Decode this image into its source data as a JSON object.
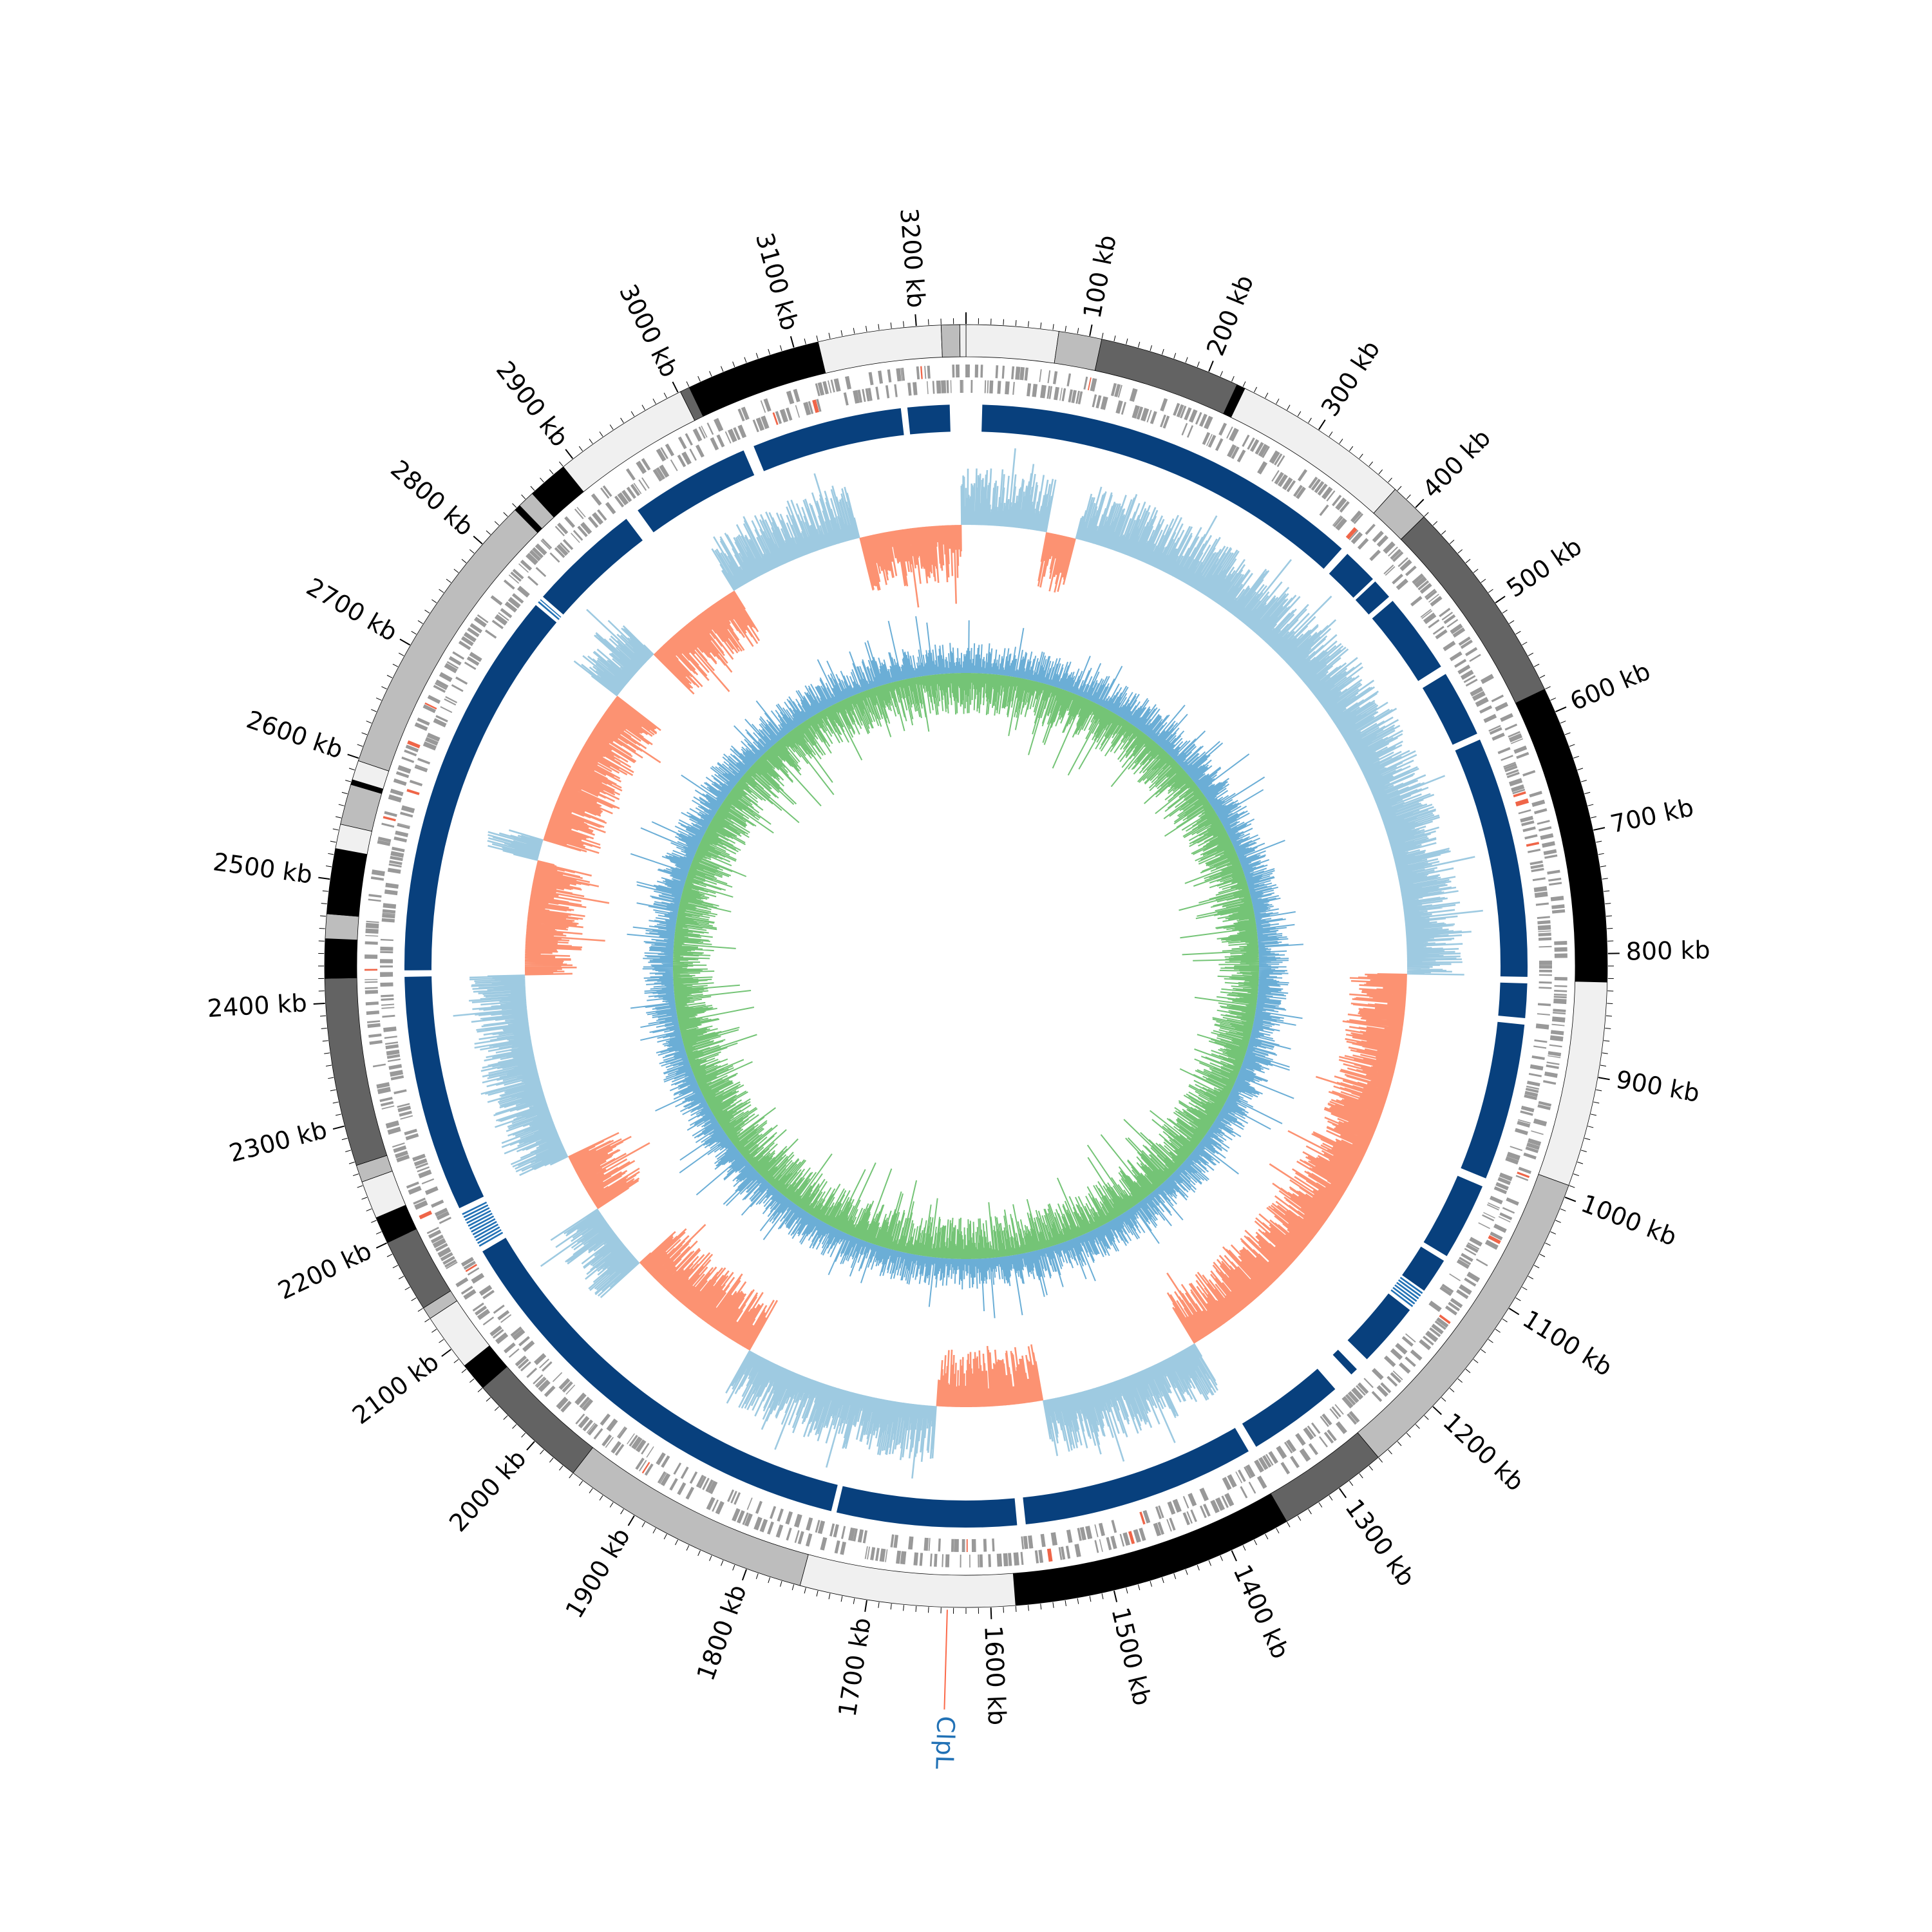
{
  "genome": {
    "length_kb": 3240,
    "start_offset_kb": 0
  },
  "scale": {
    "unit": "kb",
    "major_ticks_kb": [
      100,
      200,
      300,
      400,
      500,
      600,
      700,
      800,
      900,
      1000,
      1100,
      1200,
      1300,
      1400,
      1500,
      1600,
      1700,
      1800,
      1900,
      2000,
      2100,
      2200,
      2300,
      2400,
      2500,
      2600,
      2700,
      2800,
      2900,
      3000,
      3100,
      3200
    ],
    "labels": [
      "100 kb",
      "200 kb",
      "300 kb",
      "400 kb",
      "500 kb",
      "600 kb",
      "700 kb",
      "800 kb",
      "900 kb",
      "1000 kb",
      "1100 kb",
      "1200 kb",
      "1300 kb",
      "1400 kb",
      "1500 kb",
      "1600 kb",
      "1700 kb",
      "1800 kb",
      "1900 kb",
      "2000 kb",
      "2100 kb",
      "2200 kb",
      "2300 kb",
      "2400 kb",
      "2500 kb",
      "2600 kb",
      "2700 kb",
      "2800 kb",
      "2900 kb",
      "3000 kb",
      "3100 kb",
      "3200 kb"
    ]
  },
  "contig_ring": [
    {
      "start": 0,
      "end": 75,
      "shade": "#f0f0f0"
    },
    {
      "start": 75,
      "end": 110,
      "shade": "#bdbdbd"
    },
    {
      "start": 110,
      "end": 225,
      "shade": "#636363"
    },
    {
      "start": 225,
      "end": 232,
      "shade": "#000000"
    },
    {
      "start": 232,
      "end": 378,
      "shade": "#f0f0f0"
    },
    {
      "start": 378,
      "end": 410,
      "shade": "#bdbdbd"
    },
    {
      "start": 410,
      "end": 580,
      "shade": "#636363"
    },
    {
      "start": 580,
      "end": 823,
      "shade": "#000000"
    },
    {
      "start": 823,
      "end": 990,
      "shade": "#f0f0f0"
    },
    {
      "start": 990,
      "end": 1260,
      "shade": "#bdbdbd"
    },
    {
      "start": 1260,
      "end": 1350,
      "shade": "#636363"
    },
    {
      "start": 1350,
      "end": 1580,
      "shade": "#000000"
    },
    {
      "start": 1580,
      "end": 1755,
      "shade": "#f0f0f0"
    },
    {
      "start": 1755,
      "end": 1960,
      "shade": "#bdbdbd"
    },
    {
      "start": 1960,
      "end": 2060,
      "shade": "#636363"
    },
    {
      "start": 2060,
      "end": 2083,
      "shade": "#000000"
    },
    {
      "start": 2083,
      "end": 2130,
      "shade": "#f0f0f0"
    },
    {
      "start": 2130,
      "end": 2140,
      "shade": "#bdbdbd"
    },
    {
      "start": 2140,
      "end": 2200,
      "shade": "#636363"
    },
    {
      "start": 2200,
      "end": 2222,
      "shade": "#000000"
    },
    {
      "start": 2222,
      "end": 2253,
      "shade": "#f0f0f0"
    },
    {
      "start": 2253,
      "end": 2267,
      "shade": "#bdbdbd"
    },
    {
      "start": 2267,
      "end": 2420,
      "shade": "#636363"
    },
    {
      "start": 2420,
      "end": 2452,
      "shade": "#000000"
    },
    {
      "start": 2452,
      "end": 2472,
      "shade": "#bdbdbd"
    },
    {
      "start": 2472,
      "end": 2525,
      "shade": "#000000"
    },
    {
      "start": 2525,
      "end": 2545,
      "shade": "#f0f0f0"
    },
    {
      "start": 2545,
      "end": 2578,
      "shade": "#bdbdbd"
    },
    {
      "start": 2578,
      "end": 2582,
      "shade": "#000000"
    },
    {
      "start": 2582,
      "end": 2598,
      "shade": "#f0f0f0"
    },
    {
      "start": 2598,
      "end": 2838,
      "shade": "#bdbdbd"
    },
    {
      "start": 2838,
      "end": 2843,
      "shade": "#000000"
    },
    {
      "start": 2843,
      "end": 2857,
      "shade": "#bdbdbd"
    },
    {
      "start": 2857,
      "end": 2890,
      "shade": "#000000"
    },
    {
      "start": 2890,
      "end": 3002,
      "shade": "#f0f0f0"
    },
    {
      "start": 3002,
      "end": 3010,
      "shade": "#636363"
    },
    {
      "start": 3010,
      "end": 3120,
      "shade": "#000000"
    },
    {
      "start": 3120,
      "end": 3220,
      "shade": "#f0f0f0"
    },
    {
      "start": 3220,
      "end": 3235,
      "shade": "#bdbdbd"
    },
    {
      "start": 3235,
      "end": 3240,
      "shade": "#f0f0f0"
    }
  ],
  "blue_ring": {
    "color": "#08407d",
    "light_color": "#2171b5",
    "segments": [
      {
        "start": 15,
        "end": 378
      },
      {
        "start": 385,
        "end": 418
      },
      {
        "start": 421,
        "end": 440
      },
      {
        "start": 445,
        "end": 520
      },
      {
        "start": 528,
        "end": 590
      },
      {
        "start": 596,
        "end": 820
      },
      {
        "start": 826,
        "end": 858
      },
      {
        "start": 864,
        "end": 1010
      },
      {
        "start": 1018,
        "end": 1090
      },
      {
        "start": 1095,
        "end": 1128
      },
      {
        "start": 1150,
        "end": 1210
      },
      {
        "start": 1223,
        "end": 1230
      },
      {
        "start": 1250,
        "end": 1340
      },
      {
        "start": 1348,
        "end": 1565
      },
      {
        "start": 1573,
        "end": 1740
      },
      {
        "start": 1745,
        "end": 2155
      },
      {
        "start": 2200,
        "end": 2420
      },
      {
        "start": 2426,
        "end": 2790
      },
      {
        "start": 2800,
        "end": 2905
      },
      {
        "start": 2918,
        "end": 3030
      },
      {
        "start": 3040,
        "end": 3180
      },
      {
        "start": 3186,
        "end": 3225
      }
    ],
    "light_segments": [
      {
        "start": 1130,
        "end": 1148
      },
      {
        "start": 2160,
        "end": 2195
      },
      {
        "start": 2793,
        "end": 2797
      }
    ]
  },
  "skew_track": {
    "positive_color": "#9ecae1",
    "negative_color": "#fc9272",
    "regions": [
      {
        "start": 0,
        "end": 95,
        "sign": 1
      },
      {
        "start": 95,
        "end": 130,
        "sign": -1
      },
      {
        "start": 130,
        "end": 820,
        "sign": 1
      },
      {
        "start": 820,
        "end": 1340,
        "sign": -1
      },
      {
        "start": 1340,
        "end": 1530,
        "sign": 1
      },
      {
        "start": 1530,
        "end": 1655,
        "sign": -1
      },
      {
        "start": 1655,
        "end": 1885,
        "sign": 1
      },
      {
        "start": 1885,
        "end": 2050,
        "sign": -1
      },
      {
        "start": 2050,
        "end": 2130,
        "sign": 1
      },
      {
        "start": 2130,
        "end": 2200,
        "sign": -1
      },
      {
        "start": 2200,
        "end": 2420,
        "sign": 1
      },
      {
        "start": 2420,
        "end": 2555,
        "sign": -1
      },
      {
        "start": 2555,
        "end": 2580,
        "sign": 1
      },
      {
        "start": 2580,
        "end": 2770,
        "sign": -1
      },
      {
        "start": 2770,
        "end": 2835,
        "sign": 1
      },
      {
        "start": 2835,
        "end": 2955,
        "sign": -1
      },
      {
        "start": 2955,
        "end": 3115,
        "sign": 1
      },
      {
        "start": 3115,
        "end": 3235,
        "sign": -1
      },
      {
        "start": 3235,
        "end": 3240,
        "sign": 1
      }
    ]
  },
  "gc_track": {
    "outer_color": "#6baed6",
    "inner_color": "#74c476"
  },
  "gene_marker": {
    "label": "ClpL",
    "position_kb": 1635,
    "label_color": "#2171b5",
    "line_color": "#fb6a4a"
  }
}
